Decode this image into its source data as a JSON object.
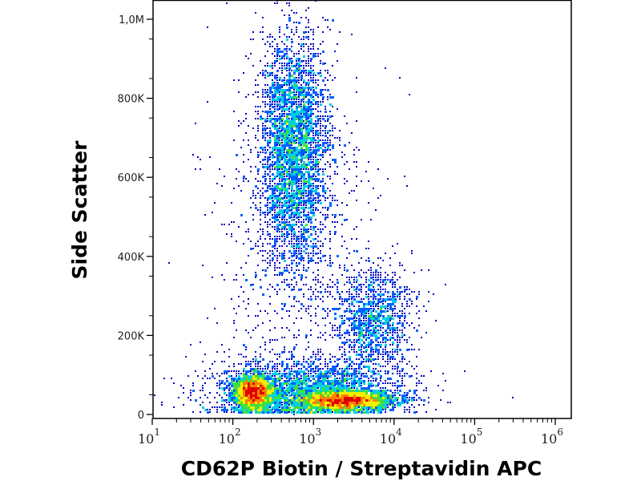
{
  "chart_data": {
    "type": "heatmap",
    "subtype": "flow-cytometry-density-dot-plot",
    "xlabel": "CD62P Biotin / Streptavidin APC",
    "ylabel": "Side Scatter",
    "x_scale": "log",
    "xlim": [
      10,
      1600000
    ],
    "ylim": [
      0,
      1050000
    ],
    "x_ticks": [
      {
        "base": "10",
        "exp": "1",
        "value": 10
      },
      {
        "base": "10",
        "exp": "2",
        "value": 100
      },
      {
        "base": "10",
        "exp": "3",
        "value": 1000
      },
      {
        "base": "10",
        "exp": "4",
        "value": 10000
      },
      {
        "base": "10",
        "exp": "5",
        "value": 100000
      },
      {
        "base": "10",
        "exp": "6",
        "value": 1000000
      }
    ],
    "y_ticks": [
      {
        "label": "0",
        "value": 0
      },
      {
        "label": "200K",
        "value": 200000
      },
      {
        "label": "400K",
        "value": 400000
      },
      {
        "label": "600K",
        "value": 600000
      },
      {
        "label": "800K",
        "value": 800000
      },
      {
        "label": "1,0M",
        "value": 1000000
      }
    ],
    "grid": false,
    "colormap": [
      "#0000c0",
      "#0060ff",
      "#00d0e0",
      "#40e040",
      "#f0f000",
      "#ff8000",
      "#e00000"
    ],
    "populations": [
      {
        "x_center": 180,
        "x_log_sd": 0.12,
        "y_center": 55000,
        "y_sd": 22000,
        "relative_size": 2500
      },
      {
        "x_center": 2500,
        "x_log_sd": 0.3,
        "y_center": 35000,
        "y_sd": 12000,
        "relative_size": 3000
      },
      {
        "x_center": 560,
        "x_log_sd": 0.22,
        "y_center": 680000,
        "y_sd": 150000,
        "relative_size": 3500
      },
      {
        "x_center": 5600,
        "x_log_sd": 0.25,
        "y_center": 240000,
        "y_sd": 70000,
        "relative_size": 1200
      },
      {
        "x_center": 800,
        "x_log_sd": 0.6,
        "y_center": 60000,
        "y_sd": 40000,
        "relative_size": 2500
      },
      {
        "x_center": 630,
        "x_log_sd": 0.5,
        "y_center": 400000,
        "y_sd": 250000,
        "relative_size": 800
      }
    ]
  }
}
